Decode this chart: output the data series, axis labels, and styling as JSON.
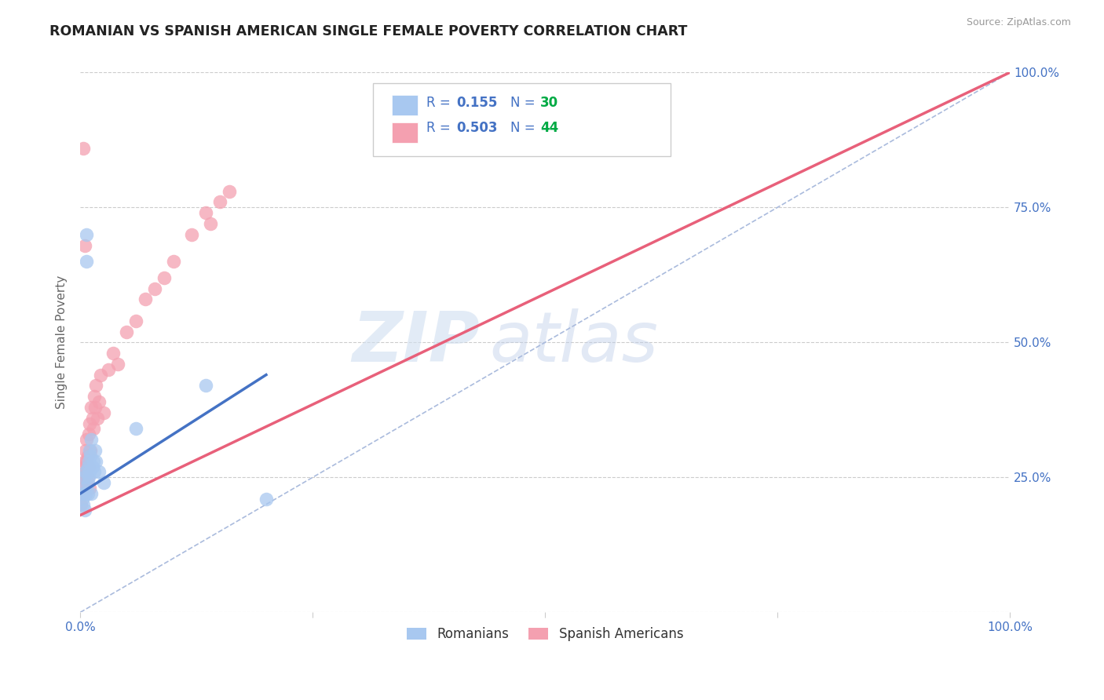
{
  "title": "ROMANIAN VS SPANISH AMERICAN SINGLE FEMALE POVERTY CORRELATION CHART",
  "source": "Source: ZipAtlas.com",
  "ylabel": "Single Female Poverty",
  "watermark_zip": "ZIP",
  "watermark_atlas": "atlas",
  "r_romanian": 0.155,
  "n_romanian": 30,
  "r_spanish": 0.503,
  "n_spanish": 44,
  "xlim": [
    0.0,
    1.0
  ],
  "ylim": [
    0.0,
    1.0
  ],
  "romanian_color": "#A8C8F0",
  "spanish_color": "#F4A0B0",
  "line_romanian_color": "#4472C4",
  "line_spanish_color": "#E8607A",
  "text_blue": "#4472C4",
  "bg_color": "#FFFFFF",
  "grid_color": "#CCCCCC",
  "rom_x": [
    0.002,
    0.003,
    0.003,
    0.004,
    0.005,
    0.005,
    0.006,
    0.006,
    0.007,
    0.007,
    0.008,
    0.008,
    0.008,
    0.009,
    0.009,
    0.01,
    0.01,
    0.011,
    0.012,
    0.012,
    0.013,
    0.014,
    0.015,
    0.016,
    0.017,
    0.02,
    0.025,
    0.06,
    0.135,
    0.2
  ],
  "rom_y": [
    0.21,
    0.2,
    0.22,
    0.25,
    0.23,
    0.19,
    0.26,
    0.22,
    0.7,
    0.65,
    0.27,
    0.24,
    0.22,
    0.28,
    0.25,
    0.3,
    0.26,
    0.29,
    0.32,
    0.22,
    0.27,
    0.28,
    0.26,
    0.3,
    0.28,
    0.26,
    0.24,
    0.34,
    0.42,
    0.21
  ],
  "sp_x": [
    0.001,
    0.002,
    0.002,
    0.003,
    0.003,
    0.004,
    0.004,
    0.005,
    0.005,
    0.006,
    0.006,
    0.007,
    0.007,
    0.008,
    0.008,
    0.009,
    0.009,
    0.01,
    0.01,
    0.011,
    0.012,
    0.013,
    0.014,
    0.015,
    0.016,
    0.017,
    0.018,
    0.02,
    0.022,
    0.025,
    0.03,
    0.035,
    0.04,
    0.05,
    0.06,
    0.07,
    0.08,
    0.09,
    0.1,
    0.12,
    0.135,
    0.14,
    0.15,
    0.16
  ],
  "sp_y": [
    0.2,
    0.24,
    0.22,
    0.86,
    0.25,
    0.23,
    0.27,
    0.28,
    0.68,
    0.26,
    0.3,
    0.32,
    0.28,
    0.29,
    0.25,
    0.33,
    0.27,
    0.35,
    0.23,
    0.3,
    0.38,
    0.36,
    0.34,
    0.4,
    0.38,
    0.42,
    0.36,
    0.39,
    0.44,
    0.37,
    0.45,
    0.48,
    0.46,
    0.52,
    0.54,
    0.58,
    0.6,
    0.62,
    0.65,
    0.7,
    0.74,
    0.72,
    0.76,
    0.78
  ],
  "rom_line_x": [
    0.0,
    0.2
  ],
  "rom_line_y": [
    0.22,
    0.44
  ],
  "sp_line_x": [
    0.0,
    1.0
  ],
  "sp_line_y": [
    0.18,
    1.0
  ]
}
